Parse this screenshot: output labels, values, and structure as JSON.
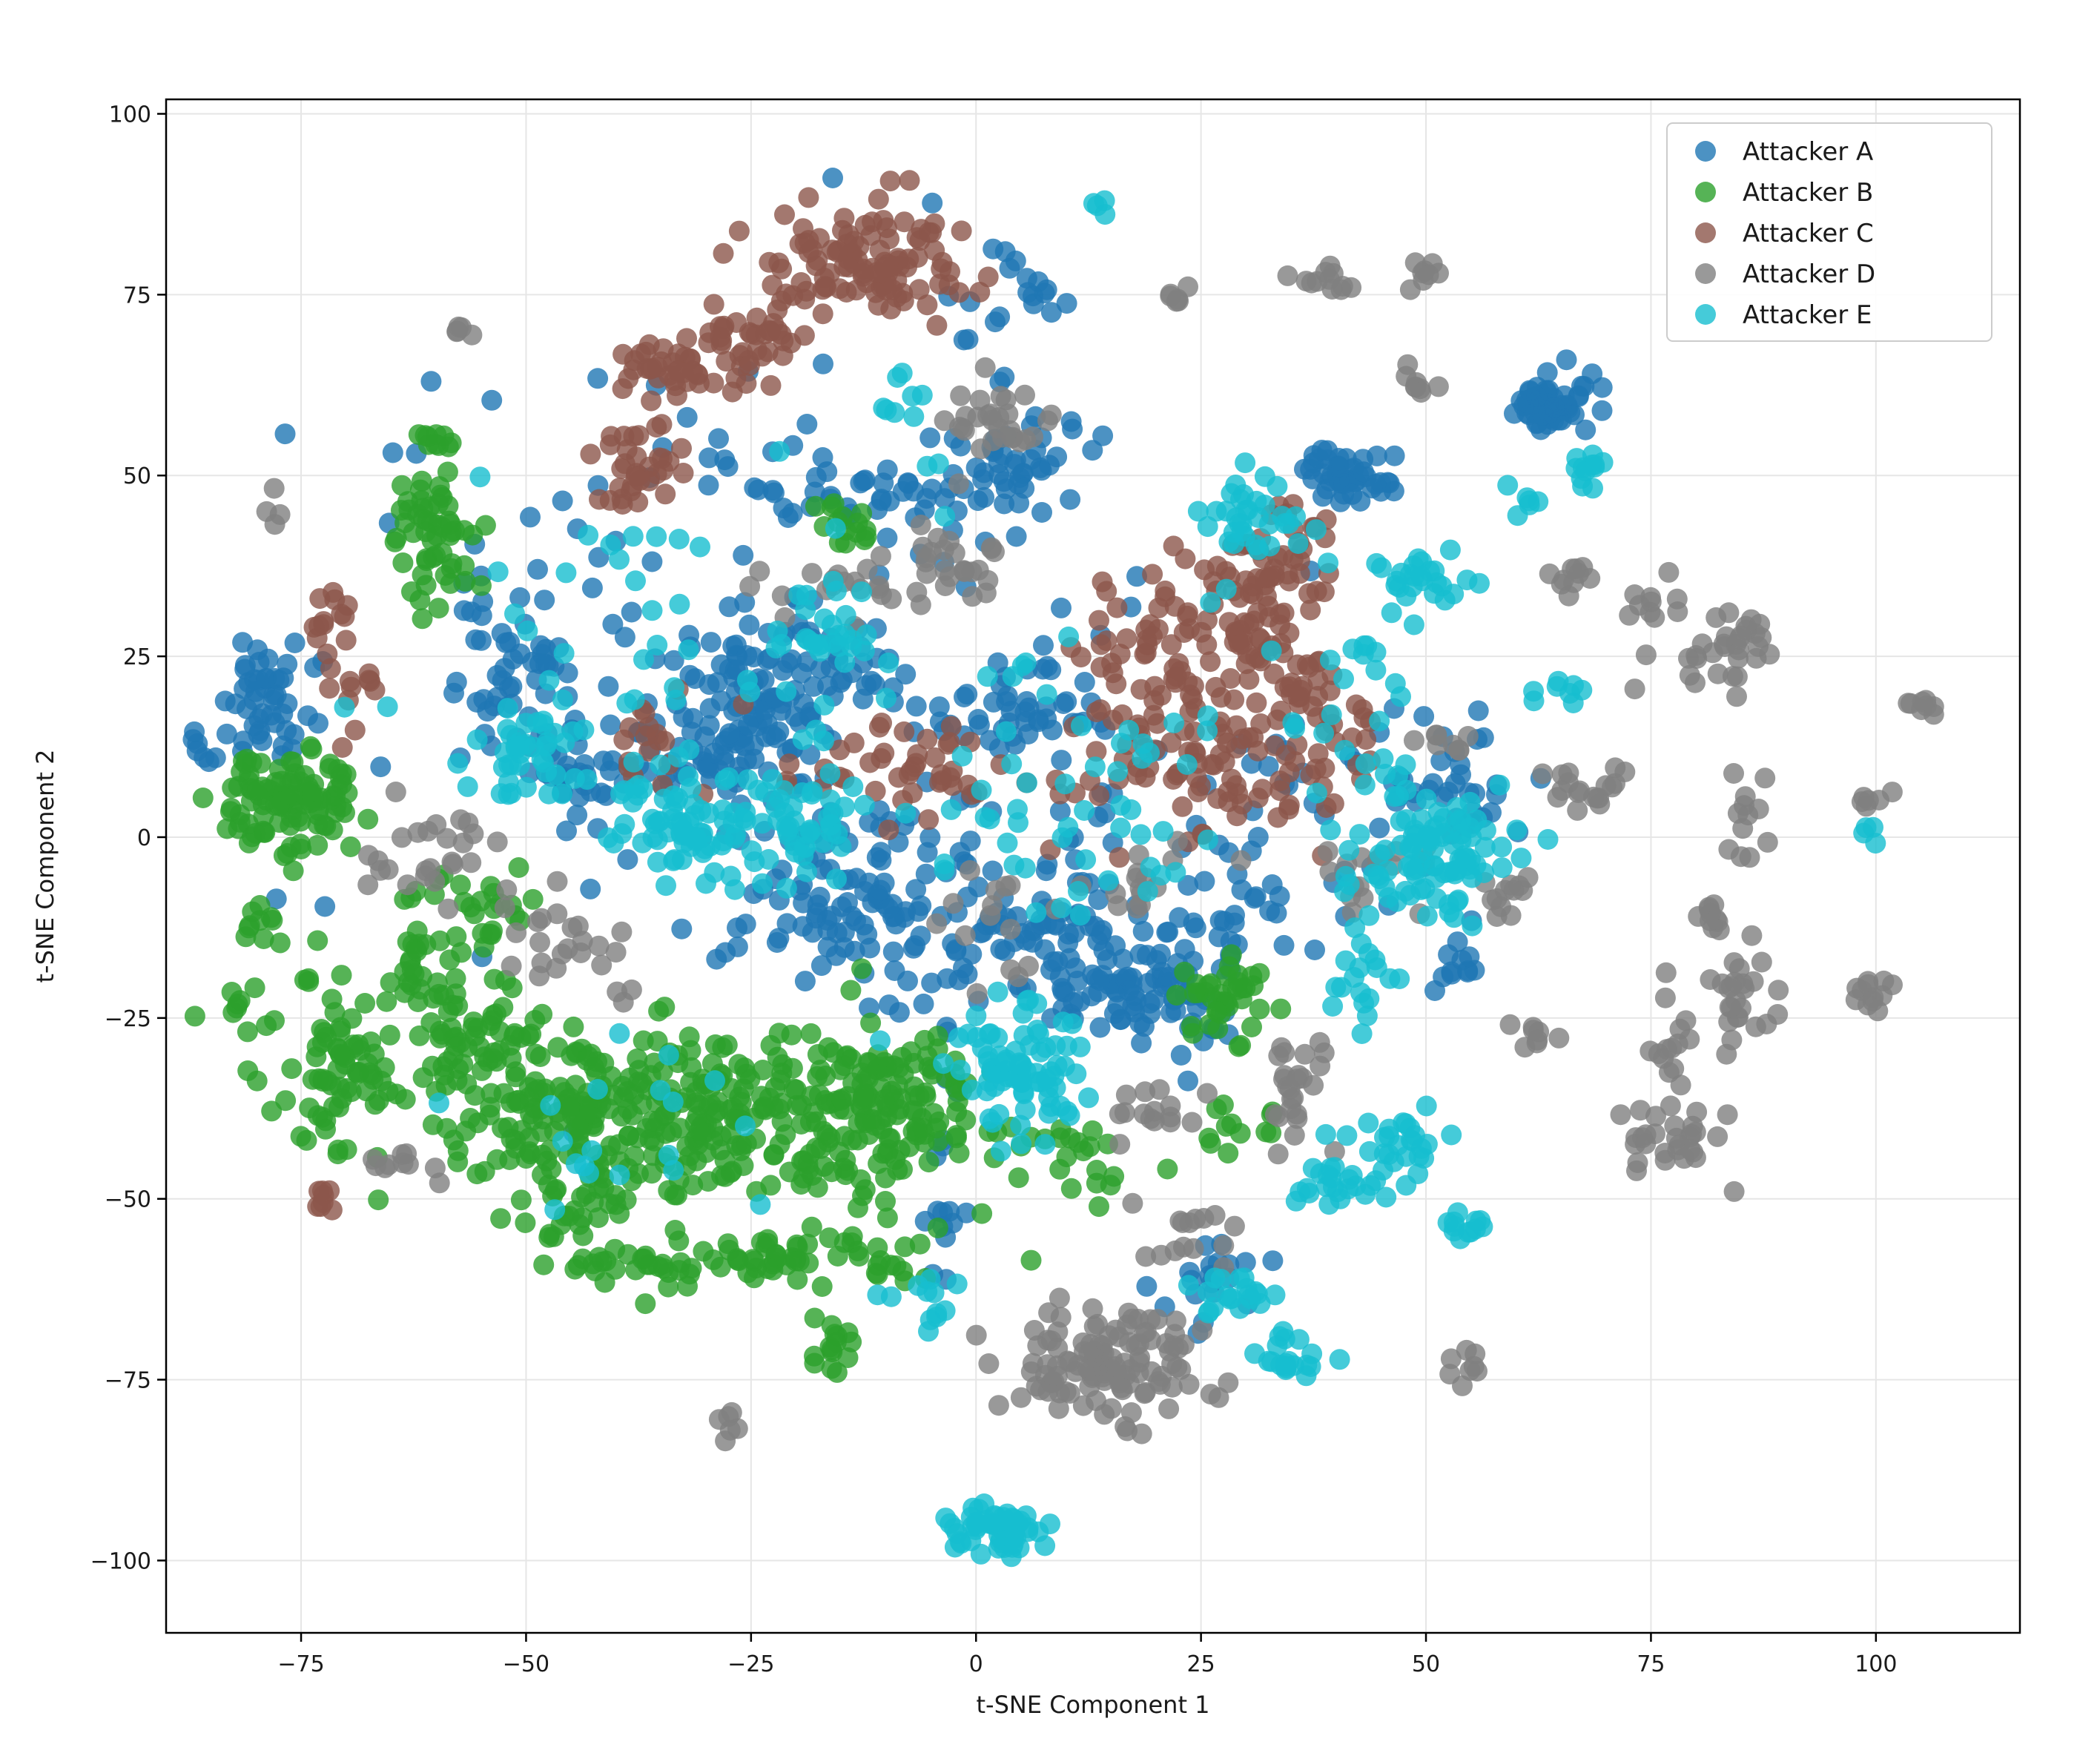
{
  "chart_data": {
    "type": "scatter",
    "title": "",
    "xlabel": "t-SNE Component 1",
    "ylabel": "t-SNE Component 2",
    "xlim": [
      -90,
      116
    ],
    "ylim": [
      -110,
      102
    ],
    "xticks": [
      -75,
      -50,
      -25,
      0,
      25,
      50,
      75,
      100
    ],
    "yticks": [
      -100,
      -75,
      -50,
      -25,
      0,
      25,
      50,
      75,
      100
    ],
    "xtick_labels": [
      "−75",
      "−50",
      "−25",
      "0",
      "25",
      "50",
      "75",
      "100"
    ],
    "ytick_labels": [
      "−100",
      "−75",
      "−50",
      "−25",
      "0",
      "25",
      "50",
      "75",
      "100"
    ],
    "grid": true,
    "legend_position": "top-right",
    "series": [
      {
        "name": "Attacker A",
        "color": "#1f77b4",
        "clusters": [
          {
            "cx": -78,
            "cy": 19,
            "sx": 3,
            "sy": 4,
            "n": 45
          },
          {
            "cx": -51,
            "cy": 22,
            "sx": 3,
            "sy": 6,
            "n": 45
          },
          {
            "cx": -42,
            "cy": 8,
            "sx": 4,
            "sy": 5,
            "n": 35
          },
          {
            "cx": -30,
            "cy": 15,
            "sx": 5,
            "sy": 6,
            "n": 40
          },
          {
            "cx": -20,
            "cy": 23,
            "sx": 5,
            "sy": 5,
            "n": 70
          },
          {
            "cx": -24,
            "cy": 12,
            "sx": 4,
            "sy": 5,
            "n": 40
          },
          {
            "cx": -15,
            "cy": -10,
            "sx": 6,
            "sy": 6,
            "n": 80
          },
          {
            "cx": -12,
            "cy": 48,
            "sx": 8,
            "sy": 3,
            "n": 50
          },
          {
            "cx": 5,
            "cy": 52,
            "sx": 4,
            "sy": 4,
            "n": 40
          },
          {
            "cx": 4,
            "cy": 75,
            "sx": 3,
            "sy": 4,
            "n": 20
          },
          {
            "cx": 5,
            "cy": 18,
            "sx": 4,
            "sy": 4,
            "n": 40
          },
          {
            "cx": 20,
            "cy": -20,
            "sx": 5,
            "sy": 5,
            "n": 90
          },
          {
            "cx": 10,
            "cy": -15,
            "sx": 4,
            "sy": 4,
            "n": 35
          },
          {
            "cx": 41,
            "cy": 50,
            "sx": 2.5,
            "sy": 2,
            "n": 45
          },
          {
            "cx": 64,
            "cy": 60,
            "sx": 2.5,
            "sy": 2.5,
            "n": 55
          },
          {
            "cx": 52,
            "cy": 8,
            "sx": 5,
            "sy": 5,
            "n": 35
          },
          {
            "cx": 54,
            "cy": -17,
            "sx": 2,
            "sy": 3,
            "n": 12
          },
          {
            "cx": -4,
            "cy": -52,
            "sx": 2,
            "sy": 4,
            "n": 12
          },
          {
            "cx": 27,
            "cy": -60,
            "sx": 3,
            "sy": 3,
            "n": 20
          },
          {
            "cx": 0,
            "cy": -8,
            "sx": 10,
            "sy": 12,
            "n": 90
          },
          {
            "cx": -30,
            "cy": 30,
            "sx": 20,
            "sy": 25,
            "n": 80
          },
          {
            "cx": 35,
            "cy": 0,
            "sx": 8,
            "sy": 10,
            "n": 45
          },
          {
            "cx": -84,
            "cy": 12,
            "sx": 2,
            "sy": 1.5,
            "n": 10
          }
        ]
      },
      {
        "name": "Attacker B",
        "color": "#2ca02c",
        "clusters": [
          {
            "cx": -76,
            "cy": 5,
            "sx": 3.5,
            "sy": 4,
            "n": 110
          },
          {
            "cx": -60,
            "cy": 42,
            "sx": 2.5,
            "sy": 5,
            "n": 55
          },
          {
            "cx": -60,
            "cy": 55,
            "sx": 1.5,
            "sy": 1,
            "n": 10
          },
          {
            "cx": -70,
            "cy": -32,
            "sx": 4,
            "sy": 6,
            "n": 75
          },
          {
            "cx": -57,
            "cy": -30,
            "sx": 4,
            "sy": 6,
            "n": 70
          },
          {
            "cx": -45,
            "cy": -40,
            "sx": 5,
            "sy": 7,
            "n": 150
          },
          {
            "cx": -30,
            "cy": -38,
            "sx": 6,
            "sy": 6,
            "n": 140
          },
          {
            "cx": -15,
            "cy": -38,
            "sx": 6,
            "sy": 6,
            "n": 110
          },
          {
            "cx": -8,
            "cy": -37,
            "sx": 4,
            "sy": 6,
            "n": 70
          },
          {
            "cx": -20,
            "cy": -58,
            "sx": 8,
            "sy": 2,
            "n": 60
          },
          {
            "cx": -38,
            "cy": -60,
            "sx": 5,
            "sy": 2,
            "n": 25
          },
          {
            "cx": -16,
            "cy": -70,
            "sx": 1.5,
            "sy": 2,
            "n": 15
          },
          {
            "cx": -62,
            "cy": -18,
            "sx": 2,
            "sy": 4,
            "n": 25
          },
          {
            "cx": -55,
            "cy": -10,
            "sx": 3,
            "sy": 3,
            "n": 25
          },
          {
            "cx": 28,
            "cy": -22,
            "sx": 3,
            "sy": 3,
            "n": 40
          },
          {
            "cx": 10,
            "cy": -45,
            "sx": 4,
            "sy": 3,
            "n": 25
          },
          {
            "cx": -15,
            "cy": 43,
            "sx": 2,
            "sy": 2,
            "n": 15
          },
          {
            "cx": 28,
            "cy": -40,
            "sx": 3,
            "sy": 2,
            "n": 12
          },
          {
            "cx": -80,
            "cy": -13,
            "sx": 2,
            "sy": 1.5,
            "n": 10
          },
          {
            "cx": -82,
            "cy": -24,
            "sx": 2,
            "sy": 2,
            "n": 10
          }
        ]
      },
      {
        "name": "Attacker C",
        "color": "#8c564b",
        "clusters": [
          {
            "cx": -12,
            "cy": 79,
            "sx": 6,
            "sy": 4,
            "n": 110
          },
          {
            "cx": -25,
            "cy": 68,
            "sx": 4,
            "sy": 3,
            "n": 40
          },
          {
            "cx": -35,
            "cy": 65,
            "sx": 2.5,
            "sy": 2,
            "n": 30
          },
          {
            "cx": -38,
            "cy": 51,
            "sx": 3,
            "sy": 3,
            "n": 35
          },
          {
            "cx": -72,
            "cy": 30,
            "sx": 2,
            "sy": 2,
            "n": 12
          },
          {
            "cx": -68,
            "cy": 20,
            "sx": 1.5,
            "sy": 3,
            "n": 12
          },
          {
            "cx": 20,
            "cy": 25,
            "sx": 4,
            "sy": 6,
            "n": 55
          },
          {
            "cx": 30,
            "cy": 30,
            "sx": 3,
            "sy": 5,
            "n": 40
          },
          {
            "cx": 34,
            "cy": 38,
            "sx": 3,
            "sy": 4,
            "n": 40
          },
          {
            "cx": 28,
            "cy": 10,
            "sx": 8,
            "sy": 5,
            "n": 90
          },
          {
            "cx": 36,
            "cy": 20,
            "sx": 3,
            "sy": 5,
            "n": 40
          },
          {
            "cx": -6,
            "cy": 10,
            "sx": 4,
            "sy": 4,
            "n": 35
          },
          {
            "cx": -35,
            "cy": 13,
            "sx": 3,
            "sy": 4,
            "n": 18
          },
          {
            "cx": -73,
            "cy": -51,
            "sx": 1,
            "sy": 1.5,
            "n": 8
          },
          {
            "cx": -18,
            "cy": 8,
            "sx": 3,
            "sy": 1,
            "n": 8
          }
        ]
      },
      {
        "name": "Attacker D",
        "color": "#7f7f7f",
        "clusters": [
          {
            "cx": 2,
            "cy": 57,
            "sx": 3,
            "sy": 3,
            "n": 30
          },
          {
            "cx": -3,
            "cy": 38,
            "sx": 3,
            "sy": 3,
            "n": 25
          },
          {
            "cx": 14,
            "cy": -73,
            "sx": 6,
            "sy": 4,
            "n": 120
          },
          {
            "cx": 36,
            "cy": -34,
            "sx": 2,
            "sy": 4,
            "n": 25
          },
          {
            "cx": 77,
            "cy": -42,
            "sx": 3,
            "sy": 3,
            "n": 30
          },
          {
            "cx": 83,
            "cy": 27,
            "sx": 3,
            "sy": 4,
            "n": 30
          },
          {
            "cx": 99,
            "cy": -21,
            "sx": 1.5,
            "sy": 1,
            "n": 12
          },
          {
            "cx": 105,
            "cy": 18,
            "sx": 1,
            "sy": 0.8,
            "n": 8
          },
          {
            "cx": 99,
            "cy": 5,
            "sx": 1,
            "sy": 1,
            "n": 6
          },
          {
            "cx": 82,
            "cy": -10,
            "sx": 1,
            "sy": 2,
            "n": 10
          },
          {
            "cx": 86,
            "cy": 2,
            "sx": 1.5,
            "sy": 3,
            "n": 12
          },
          {
            "cx": 75,
            "cy": 30,
            "sx": 2,
            "sy": 3,
            "n": 12
          },
          {
            "cx": 85,
            "cy": -22,
            "sx": 2,
            "sy": 4,
            "n": 25
          },
          {
            "cx": 77,
            "cy": -28,
            "sx": 1.5,
            "sy": 3,
            "n": 14
          },
          {
            "cx": 68,
            "cy": 7,
            "sx": 3,
            "sy": 1.5,
            "n": 18
          },
          {
            "cx": 49,
            "cy": 62,
            "sx": 1,
            "sy": 1,
            "n": 8
          },
          {
            "cx": 38,
            "cy": 77,
            "sx": 2,
            "sy": 1,
            "n": 12
          },
          {
            "cx": 49,
            "cy": 78,
            "sx": 1.5,
            "sy": 1,
            "n": 8
          },
          {
            "cx": 22,
            "cy": 75,
            "sx": 1,
            "sy": 1,
            "n": 6
          },
          {
            "cx": 67,
            "cy": 36,
            "sx": 2,
            "sy": 2,
            "n": 10
          },
          {
            "cx": -57,
            "cy": 70,
            "sx": 0.8,
            "sy": 0.8,
            "n": 5
          },
          {
            "cx": -78,
            "cy": 46,
            "sx": 0.5,
            "sy": 2,
            "n": 4
          },
          {
            "cx": -28,
            "cy": -82,
            "sx": 1,
            "sy": 1.5,
            "n": 6
          },
          {
            "cx": 54,
            "cy": -73,
            "sx": 1.5,
            "sy": 1,
            "n": 8
          },
          {
            "cx": -45,
            "cy": -15,
            "sx": 5,
            "sy": 4,
            "n": 25
          },
          {
            "cx": -60,
            "cy": -2,
            "sx": 4,
            "sy": 3,
            "n": 25
          },
          {
            "cx": -65,
            "cy": -45,
            "sx": 2,
            "sy": 1,
            "n": 10
          },
          {
            "cx": 20,
            "cy": -38,
            "sx": 3,
            "sy": 2,
            "n": 15
          },
          {
            "cx": 24,
            "cy": -55,
            "sx": 3,
            "sy": 2,
            "n": 15
          },
          {
            "cx": 60,
            "cy": -7,
            "sx": 2,
            "sy": 1.5,
            "n": 12
          },
          {
            "cx": -15,
            "cy": 35,
            "sx": 6,
            "sy": 3,
            "n": 20
          },
          {
            "cx": 3,
            "cy": -15,
            "sx": 3,
            "sy": 5,
            "n": 15
          },
          {
            "cx": 45,
            "cy": -5,
            "sx": 3,
            "sy": 3,
            "n": 18
          },
          {
            "cx": 18,
            "cy": -5,
            "sx": 4,
            "sy": 3,
            "n": 15
          },
          {
            "cx": 62,
            "cy": -27,
            "sx": 1.5,
            "sy": 1,
            "n": 8
          },
          {
            "cx": 53,
            "cy": 14,
            "sx": 2,
            "sy": 1.5,
            "n": 8
          }
        ]
      },
      {
        "name": "Attacker E",
        "color": "#17becf",
        "clusters": [
          {
            "cx": 2,
            "cy": -96,
            "sx": 3,
            "sy": 1.5,
            "n": 60
          },
          {
            "cx": 5,
            "cy": -32,
            "sx": 4,
            "sy": 5,
            "n": 80
          },
          {
            "cx": -33,
            "cy": 2,
            "sx": 4,
            "sy": 4,
            "n": 70
          },
          {
            "cx": -20,
            "cy": 2,
            "sx": 4,
            "sy": 4,
            "n": 50
          },
          {
            "cx": -50,
            "cy": 12,
            "sx": 3,
            "sy": 3,
            "n": 35
          },
          {
            "cx": 50,
            "cy": -5,
            "sx": 4,
            "sy": 4,
            "n": 55
          },
          {
            "cx": 54,
            "cy": 1,
            "sx": 4,
            "sy": 3,
            "n": 35
          },
          {
            "cx": 47,
            "cy": -42,
            "sx": 3,
            "sy": 2,
            "n": 25
          },
          {
            "cx": 40,
            "cy": -48,
            "sx": 3,
            "sy": 2,
            "n": 25
          },
          {
            "cx": 35,
            "cy": -72,
            "sx": 2,
            "sy": 1.5,
            "n": 20
          },
          {
            "cx": 54,
            "cy": -54,
            "sx": 1.5,
            "sy": 1.5,
            "n": 12
          },
          {
            "cx": 28,
            "cy": -63,
            "sx": 2,
            "sy": 2,
            "n": 20
          },
          {
            "cx": 30,
            "cy": 45,
            "sx": 3,
            "sy": 3,
            "n": 35
          },
          {
            "cx": 50,
            "cy": 35,
            "sx": 3,
            "sy": 3,
            "n": 25
          },
          {
            "cx": 68,
            "cy": 50,
            "sx": 1,
            "sy": 2,
            "n": 12
          },
          {
            "cx": 61,
            "cy": 47,
            "sx": 1,
            "sy": 1,
            "n": 6
          },
          {
            "cx": 14,
            "cy": 87,
            "sx": 0.6,
            "sy": 0.6,
            "n": 4
          },
          {
            "cx": -15,
            "cy": 28,
            "sx": 3,
            "sy": 3,
            "n": 25
          },
          {
            "cx": 43,
            "cy": -20,
            "sx": 2,
            "sy": 3,
            "n": 18
          },
          {
            "cx": -5,
            "cy": -65,
            "sx": 2,
            "sy": 2,
            "n": 12
          },
          {
            "cx": 65,
            "cy": 20,
            "sx": 1.5,
            "sy": 0.8,
            "n": 8
          },
          {
            "cx": -10,
            "cy": 60,
            "sx": 2,
            "sy": 2,
            "n": 8
          },
          {
            "cx": 10,
            "cy": 10,
            "sx": 10,
            "sy": 10,
            "n": 60
          },
          {
            "cx": -35,
            "cy": 25,
            "sx": 15,
            "sy": 15,
            "n": 50
          },
          {
            "cx": 45,
            "cy": 15,
            "sx": 5,
            "sy": 10,
            "n": 30
          },
          {
            "cx": -40,
            "cy": -40,
            "sx": 10,
            "sy": 10,
            "n": 20
          },
          {
            "cx": 99,
            "cy": 1,
            "sx": 0.5,
            "sy": 1,
            "n": 4
          }
        ]
      }
    ]
  }
}
